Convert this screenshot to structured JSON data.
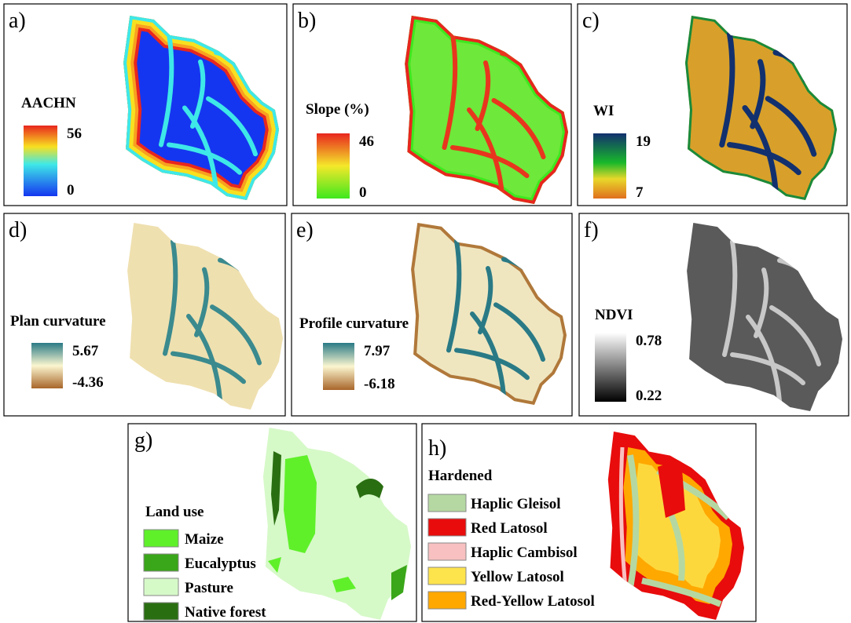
{
  "panels": [
    {
      "label": "a)",
      "legend_title": "AACHN",
      "max": 56,
      "min": 0
    },
    {
      "label": "b)",
      "legend_title": "Slope (%)",
      "max": 46,
      "min": 0
    },
    {
      "label": "c)",
      "legend_title": "WI",
      "max": 19,
      "min": 7
    },
    {
      "label": "d)",
      "legend_title": "Plan curvature",
      "max": 5.67,
      "min": -4.36
    },
    {
      "label": "e)",
      "legend_title": "Profile curvature",
      "max": 7.97,
      "min": -6.18
    },
    {
      "label": "f)",
      "legend_title": "NDVI",
      "max": 0.78,
      "min": 0.22
    }
  ],
  "land_use": {
    "label": "g)",
    "title": "Land use",
    "classes": [
      {
        "name": "Maize",
        "color": "#5ff02a"
      },
      {
        "name": "Eucalyptus",
        "color": "#3aa619"
      },
      {
        "name": "Pasture",
        "color": "#d6f9c8"
      },
      {
        "name": "Native forest",
        "color": "#2a6e12"
      }
    ]
  },
  "soil": {
    "label": "h)",
    "title": "Hardened",
    "classes": [
      {
        "name": "Haplic Gleisol",
        "color": "#b5d8a2"
      },
      {
        "name": "Red Latosol",
        "color": "#e80c0c"
      },
      {
        "name": "Haplic Cambisol",
        "color": "#f8c0c0"
      },
      {
        "name": "Yellow Latosol",
        "color": "#fde34c"
      },
      {
        "name": "Red-Yellow Latosol",
        "color": "#ffa800"
      }
    ]
  }
}
